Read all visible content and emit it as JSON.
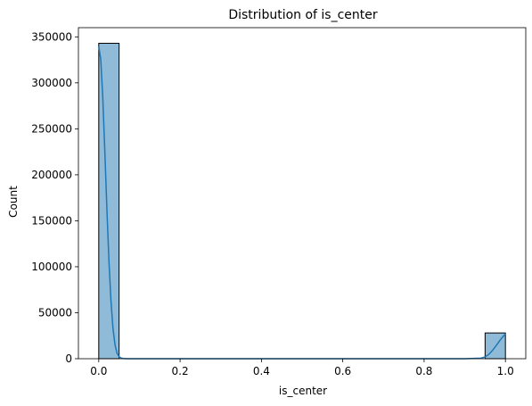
{
  "chart_data": {
    "type": "histogram",
    "title": "Distribution of is_center",
    "xlabel": "is_center",
    "ylabel": "Count",
    "xlim": [
      -0.05,
      1.05
    ],
    "ylim": [
      0,
      360000
    ],
    "x_ticks": [
      0.0,
      0.2,
      0.4,
      0.6,
      0.8,
      1.0
    ],
    "x_tick_labels": [
      "0.0",
      "0.2",
      "0.4",
      "0.6",
      "0.8",
      "1.0"
    ],
    "y_ticks": [
      0,
      50000,
      100000,
      150000,
      200000,
      250000,
      300000,
      350000
    ],
    "y_tick_labels": [
      "0",
      "50000",
      "100000",
      "150000",
      "200000",
      "250000",
      "300000",
      "350000"
    ],
    "bin_edges": [
      0.0,
      0.05,
      0.1,
      0.15,
      0.2,
      0.25,
      0.3,
      0.35,
      0.4,
      0.45,
      0.5,
      0.55,
      0.6,
      0.65,
      0.7,
      0.75,
      0.8,
      0.85,
      0.9,
      0.95,
      1.0
    ],
    "bin_counts": [
      343000,
      0,
      0,
      0,
      0,
      0,
      0,
      0,
      0,
      0,
      0,
      0,
      0,
      0,
      0,
      0,
      0,
      0,
      0,
      28000
    ],
    "kde": {
      "x": [
        0.0,
        0.005,
        0.01,
        0.015,
        0.02,
        0.025,
        0.03,
        0.035,
        0.04,
        0.045,
        0.05,
        0.055,
        0.06,
        0.07,
        0.1,
        0.2,
        0.5,
        0.8,
        0.9,
        0.94,
        0.95,
        0.96,
        0.97,
        0.98,
        0.99,
        1.0
      ],
      "y": [
        340000,
        325000,
        283000,
        225000,
        163000,
        107000,
        63000,
        33000,
        15000,
        6000,
        2200,
        700,
        200,
        0,
        0,
        0,
        0,
        0,
        0,
        600,
        2000,
        5000,
        10000,
        16000,
        22000,
        27000
      ]
    },
    "grid": false,
    "colors": {
      "bar_fill": "#1f77b4",
      "bar_fill_opacity": 0.5,
      "bar_edge": "#000000",
      "kde_line": "#1f77b4"
    }
  }
}
